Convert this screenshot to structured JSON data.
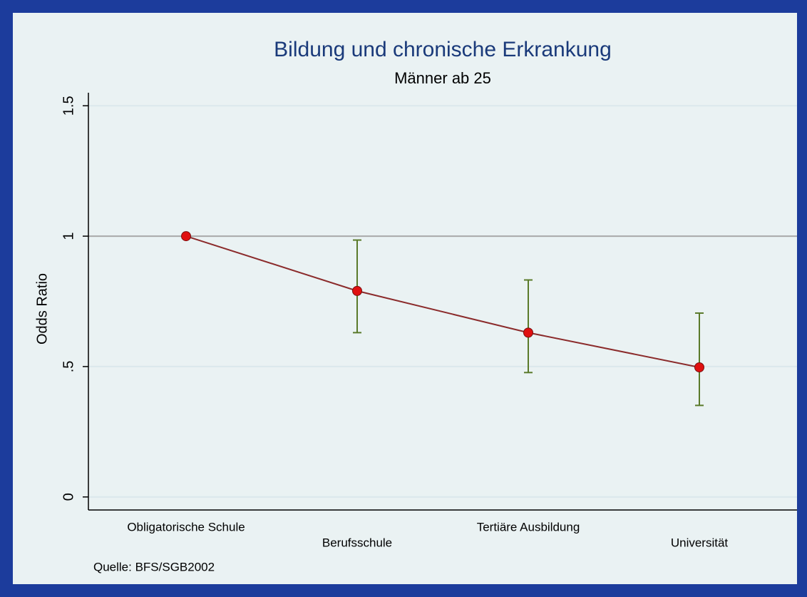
{
  "chart_data": {
    "type": "errorbar-line",
    "title": "Bildung und chronische Erkrankung",
    "subtitle": "Männer ab 25",
    "ylabel": "Odds Ratio",
    "note": "Quelle: BFS/SGB2002",
    "categories": [
      "Obligatorische Schule",
      "Berufsschule",
      "Tertiäre Ausbildung",
      "Universität"
    ],
    "values": [
      1,
      0.79,
      0.63,
      0.497
    ],
    "lower": [
      null,
      0.63,
      0.477,
      0.351
    ],
    "upper": [
      null,
      0.985,
      0.832,
      0.705
    ],
    "line_color": "#8b2b2b",
    "marker_color": "#e01010",
    "errorbar_color": "#5a7a2a",
    "yline": 1,
    "ylim": [
      -0.05,
      1.55
    ],
    "yticks": [
      0,
      {
        "value": 0.5,
        "label": ".5"
      },
      1,
      1.5
    ],
    "grid": true
  }
}
